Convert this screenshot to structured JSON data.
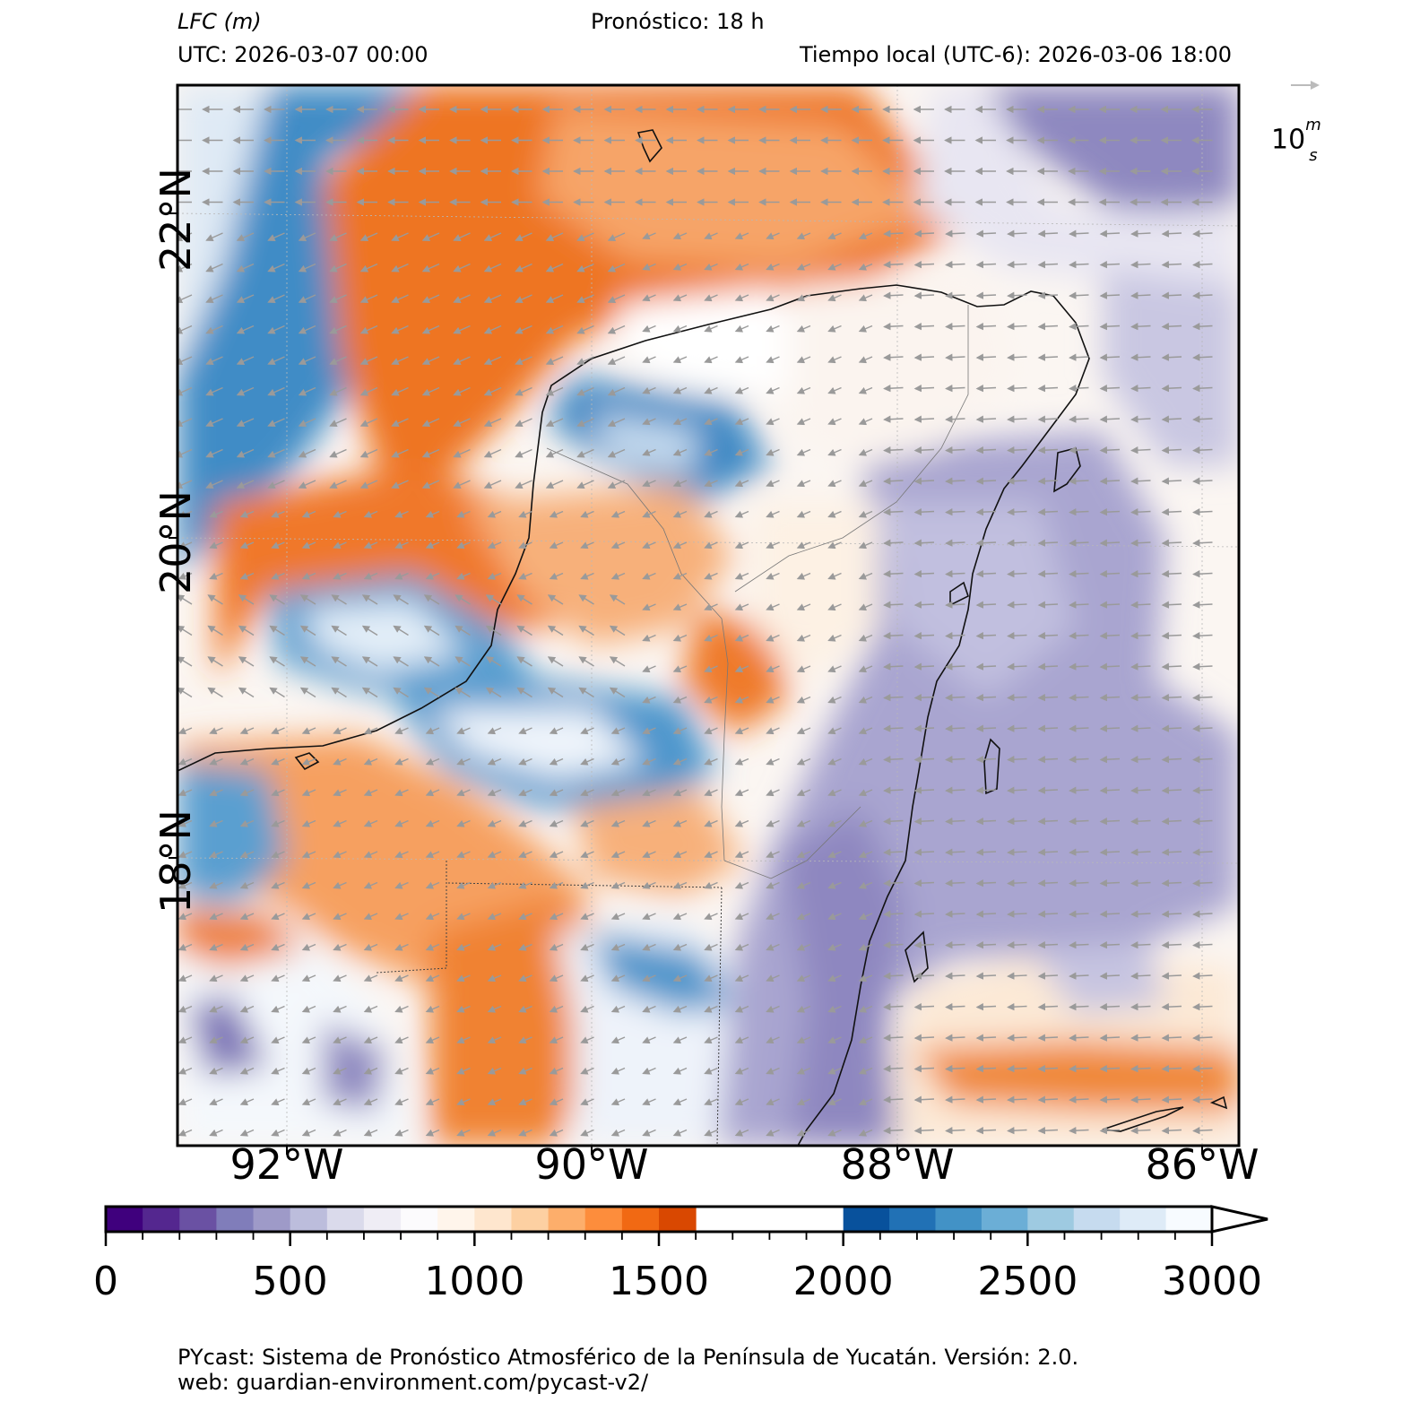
{
  "header": {
    "variable": "LFC (m)",
    "forecast": "Pronóstico: 18 h",
    "utc": "UTC:  2026-03-07 00:00",
    "local": "Tiempo local (UTC-6): 2026-03-06 18:00"
  },
  "map": {
    "lat_labels": [
      "22°N",
      "20°N",
      "18°N"
    ],
    "lon_labels": [
      "92°W",
      "90°W",
      "88°W",
      "86°W"
    ],
    "quiver_key": {
      "value": "10",
      "unit_num": "m",
      "unit_den": "s"
    }
  },
  "colorbar": {
    "min": 0,
    "max": 3000,
    "step": 100,
    "extend": "max",
    "tick_labels": [
      "0",
      "500",
      "1000",
      "1500",
      "2000",
      "2500",
      "3000"
    ],
    "colors": [
      "#3f007d",
      "#54278f",
      "#6a51a3",
      "#807dba",
      "#9e9ac8",
      "#bcbddc",
      "#dadaeb",
      "#efedf5",
      "#fcfbfd",
      "#fff5eb",
      "#fee6ce",
      "#fdd0a2",
      "#fdae6b",
      "#fd8d3c",
      "#f16913",
      "#d94801",
      "#08519c",
      "#2171b5",
      "#4292c6",
      "#6baed6",
      "#9ecae1",
      "#c6dbef",
      "#deebf7",
      "#f7fbff"
    ]
  },
  "footer": {
    "line1": "PYcast: Sistema de Pronóstico Atmosférico de la Península de Yucatán. Versión: 2.0.",
    "line2": "web: guardian-environment.com/pycast-v2/"
  }
}
